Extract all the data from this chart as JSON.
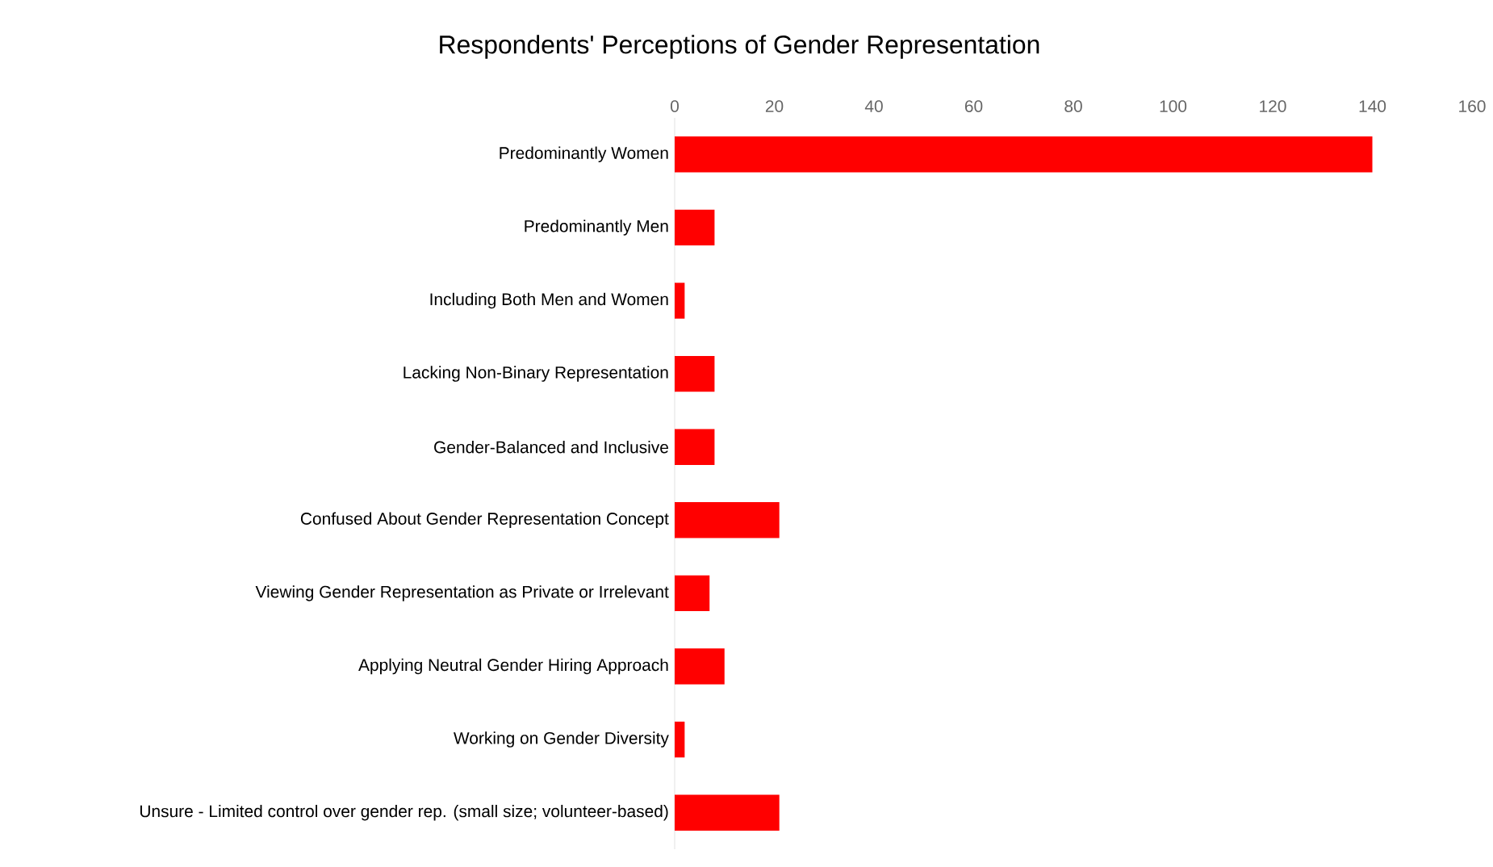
{
  "chart_data": {
    "type": "bar",
    "orientation": "horizontal",
    "title": "Respondents' Perceptions of Gender Representation",
    "categories": [
      "Predominantly Women",
      "Predominantly Men",
      "Including Both Men and Women",
      "Lacking Non-Binary Representation",
      "Gender-Balanced and Inclusive",
      "Confused About Gender Representation Concept",
      "Viewing Gender Representation as Private or Irrelevant",
      "Applying Neutral Gender Hiring Approach",
      "Working on Gender Diversity",
      "Unsure - Limited control over gender rep. (small size; volunteer-based)"
    ],
    "values": [
      140,
      8,
      2,
      8,
      8,
      21,
      7,
      10,
      2,
      21
    ],
    "color": "#ff0000",
    "xlim": [
      0,
      160
    ],
    "xticks": [
      0,
      20,
      40,
      60,
      80,
      100,
      120,
      140,
      160
    ]
  }
}
